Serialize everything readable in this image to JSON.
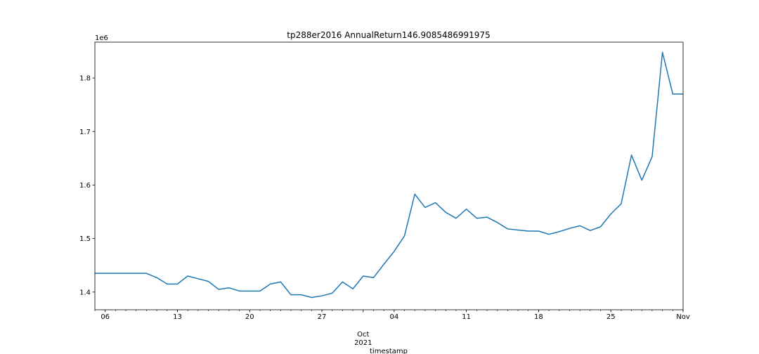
{
  "chart_data": {
    "type": "line",
    "title": "tp288er2016 AnnualReturn146.9085486991975",
    "xlabel": "timestamp",
    "ylabel": "",
    "y_offset_label": "1e6",
    "grid": false,
    "color": "#1f77b4",
    "xlim": [
      "2021-09-05",
      "2021-11-01"
    ],
    "ylim": [
      1367000,
      1867000
    ],
    "y_ticks": [
      {
        "value": 1400000,
        "label": "1.4"
      },
      {
        "value": 1500000,
        "label": "1.5"
      },
      {
        "value": 1600000,
        "label": "1.6"
      },
      {
        "value": 1700000,
        "label": "1.7"
      },
      {
        "value": 1800000,
        "label": "1.8"
      }
    ],
    "x_major_ticks": [
      {
        "date": "2021-09-06",
        "label": "06"
      },
      {
        "date": "2021-09-13",
        "label": "13"
      },
      {
        "date": "2021-09-20",
        "label": "20"
      },
      {
        "date": "2021-09-27",
        "label": "27"
      },
      {
        "date": "2021-10-04",
        "label": "04"
      },
      {
        "date": "2021-10-11",
        "label": "11"
      },
      {
        "date": "2021-10-18",
        "label": "18"
      },
      {
        "date": "2021-10-25",
        "label": "25"
      },
      {
        "date": "2021-11-01",
        "label": "Nov"
      }
    ],
    "x_group_label": {
      "date": "2021-10-01",
      "label": "Oct\n2021"
    },
    "series": [
      {
        "x": [
          "2021-09-05",
          "2021-09-06",
          "2021-09-07",
          "2021-09-08",
          "2021-09-09",
          "2021-09-10",
          "2021-09-11",
          "2021-09-12",
          "2021-09-13",
          "2021-09-14",
          "2021-09-15",
          "2021-09-16",
          "2021-09-17",
          "2021-09-18",
          "2021-09-19",
          "2021-09-20",
          "2021-09-21",
          "2021-09-22",
          "2021-09-23",
          "2021-09-24",
          "2021-09-25",
          "2021-09-26",
          "2021-09-27",
          "2021-09-28",
          "2021-09-29",
          "2021-09-30",
          "2021-10-01",
          "2021-10-02",
          "2021-10-03",
          "2021-10-04",
          "2021-10-05",
          "2021-10-06",
          "2021-10-07",
          "2021-10-08",
          "2021-10-09",
          "2021-10-10",
          "2021-10-11",
          "2021-10-12",
          "2021-10-13",
          "2021-10-14",
          "2021-10-15",
          "2021-10-16",
          "2021-10-17",
          "2021-10-18",
          "2021-10-19",
          "2021-10-20",
          "2021-10-21",
          "2021-10-22",
          "2021-10-23",
          "2021-10-24",
          "2021-10-25",
          "2021-10-26",
          "2021-10-27",
          "2021-10-28",
          "2021-10-29",
          "2021-10-30",
          "2021-10-31",
          "2021-11-01"
        ],
        "values": [
          1435000,
          1435000,
          1435000,
          1435000,
          1435000,
          1435000,
          1427000,
          1415000,
          1415000,
          1430000,
          1425000,
          1420000,
          1405000,
          1408000,
          1402000,
          1402000,
          1402000,
          1415000,
          1419000,
          1395000,
          1395000,
          1390000,
          1393000,
          1398000,
          1419000,
          1406000,
          1430000,
          1427000,
          1452000,
          1476000,
          1505000,
          1583000,
          1558000,
          1567000,
          1549000,
          1538000,
          1555000,
          1538000,
          1540000,
          1530000,
          1518000,
          1516000,
          1514000,
          1514000,
          1508000,
          1513000,
          1519000,
          1524000,
          1515000,
          1522000,
          1546000,
          1565000,
          1656000,
          1609000,
          1653000,
          1848000,
          1770000,
          1770000
        ]
      }
    ]
  }
}
